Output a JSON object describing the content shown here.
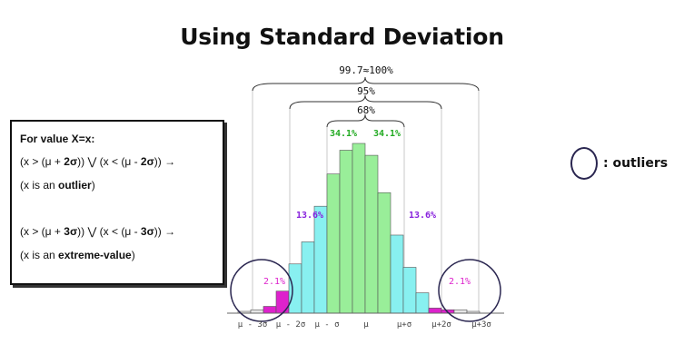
{
  "title": "Using Standard Deviation",
  "rule_box": {
    "heading": "For value X=x:",
    "rule1": {
      "pre": "(x > (μ + ",
      "bold1": "2σ",
      "mid": ")) ⋁ (x < (μ - ",
      "bold2": "2σ",
      "post": ")) →"
    },
    "rule1_result": {
      "pre": "(x is an ",
      "bold": "outlier",
      "post": ")"
    },
    "rule2": {
      "pre": "(x > (μ + ",
      "bold1": "3σ",
      "mid": ")) ⋁ (x < (μ - ",
      "bold2": "3σ",
      "post": ")) →"
    },
    "rule2_result": {
      "pre": "(x is an ",
      "bold": "extreme-value",
      "post": ")"
    }
  },
  "legend": {
    "label": ": outliers"
  },
  "distribution": {
    "brackets": [
      "99.7≈100%",
      "95%",
      "68%"
    ],
    "percent_labels": {
      "center_left": "34.1%",
      "center_right": "34.1%",
      "mid_left": "13.6%",
      "mid_right": "13.6%",
      "tail_left": "2.1%",
      "tail_right": "2.1%"
    },
    "axis_ticks": [
      "μ - 3σ",
      "μ - 2σ",
      "μ - σ",
      "μ",
      "μ+σ",
      "μ+2σ",
      "μ+3σ"
    ],
    "bar_heights": [
      0.01,
      0.02,
      0.04,
      0.13,
      0.29,
      0.42,
      0.63,
      0.82,
      0.96,
      1.0,
      0.93,
      0.71,
      0.46,
      0.27,
      0.12,
      0.03,
      0.02,
      0.02,
      0.01
    ],
    "colors": {
      "green": "#99ee99",
      "cyan": "#88f0f0",
      "magenta": "#dd22cc",
      "gray": "#e6e6e6",
      "green_text": "#22aa22",
      "purple_text": "#8822dd",
      "magenta_text": "#dd22cc"
    }
  }
}
